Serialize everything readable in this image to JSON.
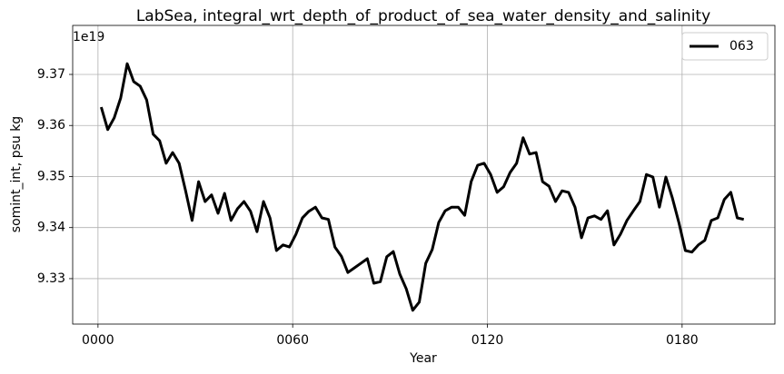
{
  "chart_data": {
    "type": "line",
    "title": "LabSea, integral_wrt_depth_of_product_of_sea_water_density_and_salinity",
    "xlabel": "Year",
    "ylabel": "somint_int, psu kg",
    "offset_label": "1e19",
    "x": [
      1,
      3,
      5,
      7,
      9,
      11,
      13,
      15,
      17,
      19,
      21,
      23,
      25,
      27,
      29,
      31,
      33,
      35,
      37,
      39,
      41,
      43,
      45,
      47,
      49,
      51,
      53,
      55,
      57,
      59,
      61,
      63,
      65,
      67,
      69,
      71,
      73,
      75,
      77,
      79,
      81,
      83,
      85,
      87,
      89,
      91,
      93,
      95,
      97,
      99,
      101,
      103,
      105,
      107,
      109,
      111,
      113,
      115,
      117,
      119,
      121,
      123,
      125,
      127,
      129,
      131,
      133,
      135,
      137,
      139,
      141,
      143,
      145,
      147,
      149,
      151,
      153,
      155,
      157,
      159,
      161,
      163,
      165,
      167,
      169,
      171,
      173,
      175,
      177,
      179,
      181,
      183,
      185,
      187,
      189,
      191,
      193,
      195,
      197,
      199
    ],
    "series": [
      {
        "name": "063",
        "color": "#000000",
        "values": [
          9.3636,
          9.3592,
          9.3615,
          9.3654,
          9.3721,
          9.3686,
          9.3677,
          9.365,
          9.3583,
          9.357,
          9.3526,
          9.3547,
          9.3526,
          9.3472,
          9.3414,
          9.349,
          9.3451,
          9.3464,
          9.3428,
          9.3467,
          9.3414,
          9.3437,
          9.3451,
          9.3432,
          9.3392,
          9.3451,
          9.3419,
          9.3355,
          9.3366,
          9.3362,
          9.3387,
          9.3419,
          9.3432,
          9.344,
          9.3419,
          9.3416,
          9.3362,
          9.3344,
          9.3312,
          9.3321,
          9.333,
          9.3339,
          9.3291,
          9.3294,
          9.3343,
          9.3353,
          9.3309,
          9.328,
          9.3238,
          9.3254,
          9.333,
          9.3357,
          9.341,
          9.3433,
          9.344,
          9.344,
          9.3424,
          9.349,
          9.3522,
          9.3526,
          9.3504,
          9.3469,
          9.348,
          9.3508,
          9.3526,
          9.3576,
          9.3544,
          9.3547,
          9.349,
          9.3481,
          9.3451,
          9.3472,
          9.3469,
          9.344,
          9.338,
          9.3419,
          9.3423,
          9.3416,
          9.3433,
          9.3366,
          9.3387,
          9.3414,
          9.3433,
          9.3451,
          9.3504,
          9.3499,
          9.344,
          9.3499,
          9.3458,
          9.341,
          9.3355,
          9.3352,
          9.3366,
          9.3375,
          9.3414,
          9.3419,
          9.3455,
          9.3469,
          9.3419,
          9.3416
        ]
      }
    ],
    "xlim": [
      -7.8,
      208.6
    ],
    "ylim": [
      9.3211,
      9.3796
    ],
    "xticks": [
      {
        "value": 0,
        "label": "0000"
      },
      {
        "value": 60,
        "label": "0060"
      },
      {
        "value": 120,
        "label": "0120"
      },
      {
        "value": 180,
        "label": "0180"
      }
    ],
    "yticks": [
      9.33,
      9.34,
      9.35,
      9.36,
      9.37
    ],
    "grid": true,
    "legend": "upper right"
  }
}
